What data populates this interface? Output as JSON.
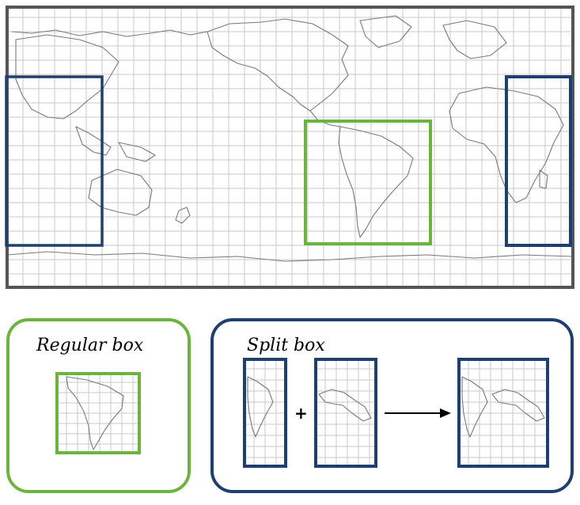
{
  "colors": {
    "map_frame": "#555555",
    "regular_box": "#6cb33f",
    "split_box": "#1f3f6e",
    "grid": "#c9c9c9",
    "coast": "#7a7a7a"
  },
  "panels": {
    "regular": {
      "label": "Regular box"
    },
    "split": {
      "label": "Split box",
      "plus": "+"
    }
  }
}
